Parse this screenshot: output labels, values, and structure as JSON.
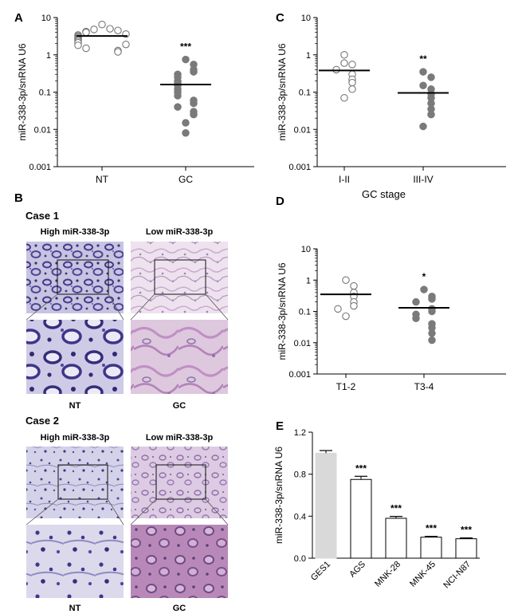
{
  "panels": {
    "A": "A",
    "B": "B",
    "C": "C",
    "D": "D",
    "E": "E"
  },
  "ylabel": "miR-338-3p/snRNA U6",
  "log_ticks": [
    "0.001",
    "0.01",
    "0.1",
    "1",
    "10"
  ],
  "chart_data": [
    {
      "panel": "A",
      "type": "scatter",
      "yscale": "log",
      "ylim": [
        0.001,
        10
      ],
      "ylabel": "miR-338-3p/snRNA U6",
      "categories": [
        "NT",
        "GC"
      ],
      "series": [
        {
          "name": "NT",
          "open": true,
          "mean": 3.2,
          "values": [
            6.5,
            5.0,
            4.8,
            4.5,
            4.2,
            4.0,
            3.6,
            3.4,
            3.2,
            3.0,
            2.8,
            2.6,
            2.5,
            2.3,
            2.1,
            1.9,
            1.8,
            1.5,
            1.3,
            1.2
          ]
        },
        {
          "name": "GC",
          "open": false,
          "mean": 0.16,
          "values": [
            0.75,
            0.55,
            0.4,
            0.35,
            0.3,
            0.25,
            0.2,
            0.18,
            0.15,
            0.12,
            0.1,
            0.08,
            0.06,
            0.05,
            0.04,
            0.03,
            0.025,
            0.015,
            0.008
          ]
        }
      ],
      "annotations": [
        {
          "category": "GC",
          "text": "***"
        }
      ]
    },
    {
      "panel": "C",
      "type": "scatter",
      "yscale": "log",
      "ylim": [
        0.001,
        10
      ],
      "ylabel": "miR-338-3p/snRNA U6",
      "xlabel": "GC stage",
      "categories": [
        "I-II",
        "III-IV"
      ],
      "series": [
        {
          "name": "I-II",
          "open": true,
          "mean": 0.38,
          "values": [
            1.0,
            0.6,
            0.55,
            0.4,
            0.3,
            0.22,
            0.18,
            0.12,
            0.07
          ]
        },
        {
          "name": "III-IV",
          "open": false,
          "mean": 0.095,
          "values": [
            0.35,
            0.25,
            0.15,
            0.12,
            0.09,
            0.07,
            0.05,
            0.035,
            0.025,
            0.012
          ]
        }
      ],
      "annotations": [
        {
          "category": "III-IV",
          "text": "**"
        }
      ]
    },
    {
      "panel": "D",
      "type": "scatter",
      "yscale": "log",
      "ylim": [
        0.001,
        10
      ],
      "ylabel": "miR-338-3p/snRNA U6",
      "categories": [
        "T1-2",
        "T3-4"
      ],
      "series": [
        {
          "name": "T1-2",
          "open": true,
          "mean": 0.35,
          "values": [
            1.0,
            0.65,
            0.4,
            0.3,
            0.2,
            0.15,
            0.12,
            0.07
          ]
        },
        {
          "name": "T3-4",
          "open": false,
          "mean": 0.13,
          "values": [
            0.5,
            0.3,
            0.25,
            0.2,
            0.12,
            0.1,
            0.08,
            0.06,
            0.04,
            0.03,
            0.02,
            0.012
          ]
        }
      ],
      "annotations": [
        {
          "category": "T3-4",
          "text": "*"
        }
      ]
    },
    {
      "panel": "E",
      "type": "bar",
      "ylim": [
        0,
        1.2
      ],
      "yticks": [
        "0.0",
        "0.4",
        "0.8",
        "1.2"
      ],
      "ylabel": "miR-338-3p/snRNA U6",
      "categories": [
        "GES1",
        "AGS",
        "MNK-28",
        "MNK-45",
        "NCI-N87"
      ],
      "values": [
        1.0,
        0.75,
        0.38,
        0.2,
        0.185
      ],
      "errors": [
        0.025,
        0.03,
        0.018,
        0.008,
        0.008
      ],
      "bar_colors": [
        "#d9d9d9",
        "#ffffff",
        "#ffffff",
        "#ffffff",
        "#ffffff"
      ],
      "annotations": [
        "",
        "***",
        "***",
        "***",
        "***"
      ]
    }
  ],
  "histology": {
    "case1": "Case 1",
    "case2": "Case 2",
    "high_label": "High miR-338-3p",
    "low_label": "Low miR-338-3p",
    "nt_label": "NT",
    "gc_label": "GC"
  }
}
